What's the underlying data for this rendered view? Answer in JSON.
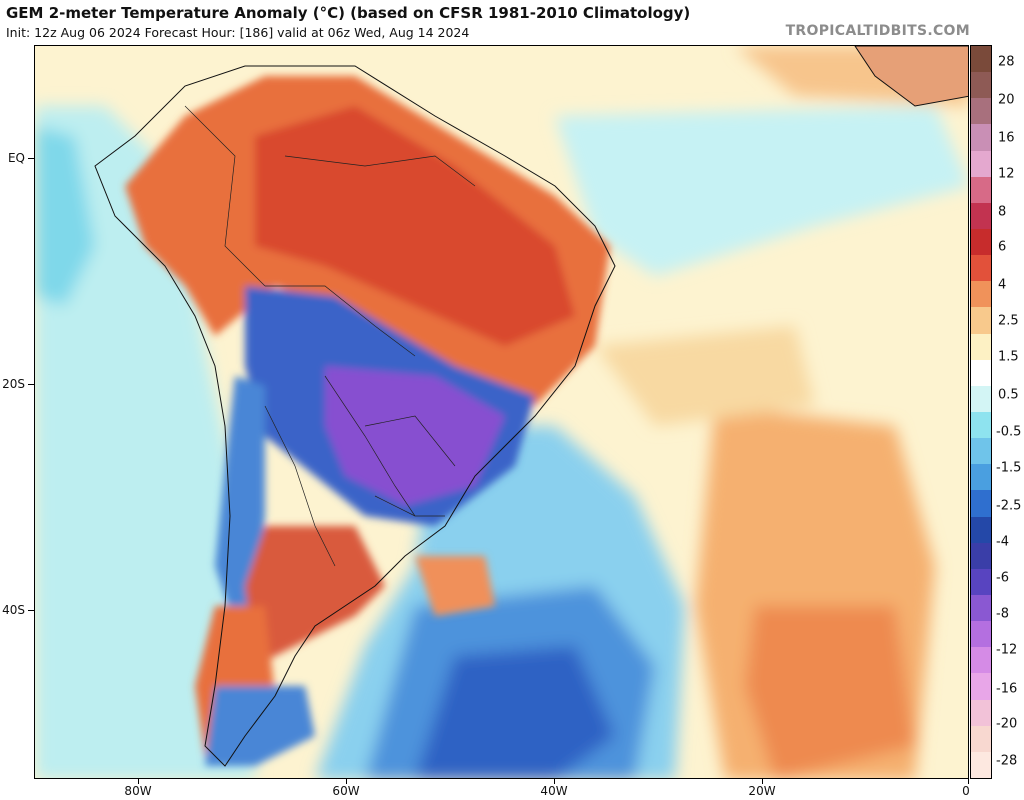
{
  "header": {
    "title": "GEM 2-meter Temperature Anomaly (°C) (based on CFSR 1981-2010 Climatology)",
    "subtitle": "Init: 12z Aug 06 2024   Forecast Hour: [186]   valid at 06z Wed, Aug 14 2024",
    "brand": "TROPICALTIDBITS.COM"
  },
  "map": {
    "lat_labels": [
      "EQ",
      "20S",
      "40S"
    ],
    "lon_labels": [
      "80W",
      "60W",
      "40W",
      "20W",
      "0"
    ]
  },
  "colorbar": {
    "labels": [
      "28",
      "20",
      "16",
      "12",
      "8",
      "6",
      "4",
      "2.5",
      "1.5",
      "0.5",
      "-0.5",
      "-1.5",
      "-2.5",
      "-4",
      "-6",
      "-8",
      "-12",
      "-16",
      "-20",
      "-28"
    ],
    "colors": [
      "#7a4a3a",
      "#8e5a55",
      "#a8707d",
      "#c98fb5",
      "#e4a8cf",
      "#d76a87",
      "#c23350",
      "#c72c2c",
      "#e2513a",
      "#f0925a",
      "#f8c98c",
      "#fdf1c4",
      "#ffffff",
      "#d3f5f5",
      "#8ee3ef",
      "#6fc4ea",
      "#4a9fe0",
      "#2f6fcf",
      "#2448a8",
      "#3a3ea8",
      "#5844c0",
      "#8a58d2",
      "#b46fe0",
      "#d58be6",
      "#e8a6e8",
      "#f2c2d8",
      "#f8d8d0",
      "#fde8e0"
    ]
  }
}
